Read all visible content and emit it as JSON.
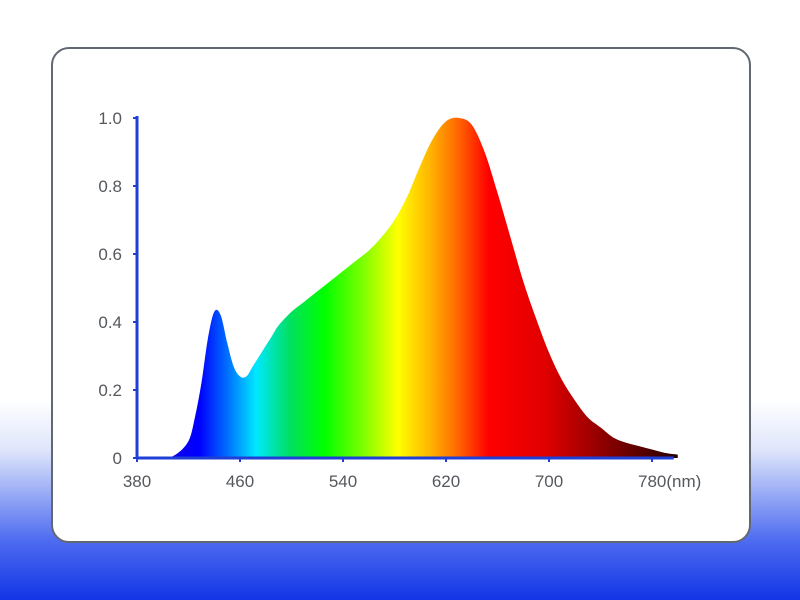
{
  "chart_data": {
    "type": "area",
    "title": "",
    "xlabel": "",
    "ylabel": "",
    "x_unit_label": "(nm)",
    "xlim": [
      380,
      800
    ],
    "ylim": [
      0,
      1.0
    ],
    "x_ticks": [
      380,
      460,
      540,
      620,
      700,
      780
    ],
    "x_tick_labels": [
      "380",
      "460",
      "540",
      "620",
      "700",
      "780(nm)"
    ],
    "y_ticks": [
      0,
      0.2,
      0.4,
      0.6,
      0.8,
      1.0
    ],
    "y_tick_labels": [
      "0",
      "0.2",
      "0.4",
      "0.6",
      "0.8",
      "1.0"
    ],
    "grid": false,
    "legend": "none",
    "colors": {
      "axis": "#1f3fd6",
      "tick_text": "#55585d",
      "card_border": "#626872"
    },
    "series": [
      {
        "x": [
          380,
          400,
          410,
          420,
          425,
          430,
          435,
          440,
          445,
          450,
          455,
          460,
          465,
          470,
          475,
          480,
          485,
          490,
          500,
          510,
          520,
          530,
          540,
          550,
          560,
          570,
          580,
          590,
          600,
          610,
          620,
          630,
          640,
          650,
          660,
          670,
          680,
          690,
          700,
          710,
          720,
          730,
          740,
          750,
          760,
          770,
          780,
          790,
          800
        ],
        "y": [
          0.0,
          0.0,
          0.01,
          0.05,
          0.12,
          0.22,
          0.35,
          0.43,
          0.42,
          0.34,
          0.27,
          0.24,
          0.24,
          0.27,
          0.3,
          0.33,
          0.36,
          0.39,
          0.43,
          0.46,
          0.49,
          0.52,
          0.55,
          0.58,
          0.61,
          0.65,
          0.7,
          0.77,
          0.86,
          0.94,
          0.99,
          1.0,
          0.98,
          0.9,
          0.78,
          0.65,
          0.52,
          0.41,
          0.31,
          0.23,
          0.17,
          0.12,
          0.09,
          0.06,
          0.045,
          0.035,
          0.025,
          0.015,
          0.01
        ]
      }
    ]
  }
}
